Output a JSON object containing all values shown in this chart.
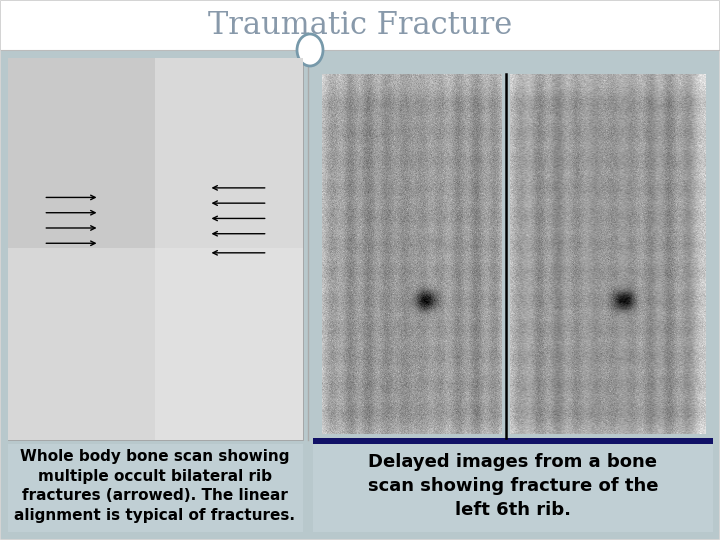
{
  "title": "Traumatic Fracture",
  "title_fontsize": 22,
  "title_color": "#8899aa",
  "bg_color": "#ffffff",
  "slide_bg": "#b8c8cc",
  "left_caption": "Whole body bone scan showing\nmultiple occult bilateral rib\nfractures (arrowed). The linear\nalignment is typical of fractures.",
  "right_caption": "Delayed images from a bone\nscan showing fracture of the\nleft 6th rib.",
  "caption_fontsize": 11,
  "caption_color": "#000000",
  "divider_color": "#1a2e6e",
  "circle_edge_color": "#7799aa",
  "separator_color": "#888888",
  "border_color": "#cccccc",
  "title_line_color": "#bbbbbb",
  "right_divider_color": "#111166"
}
